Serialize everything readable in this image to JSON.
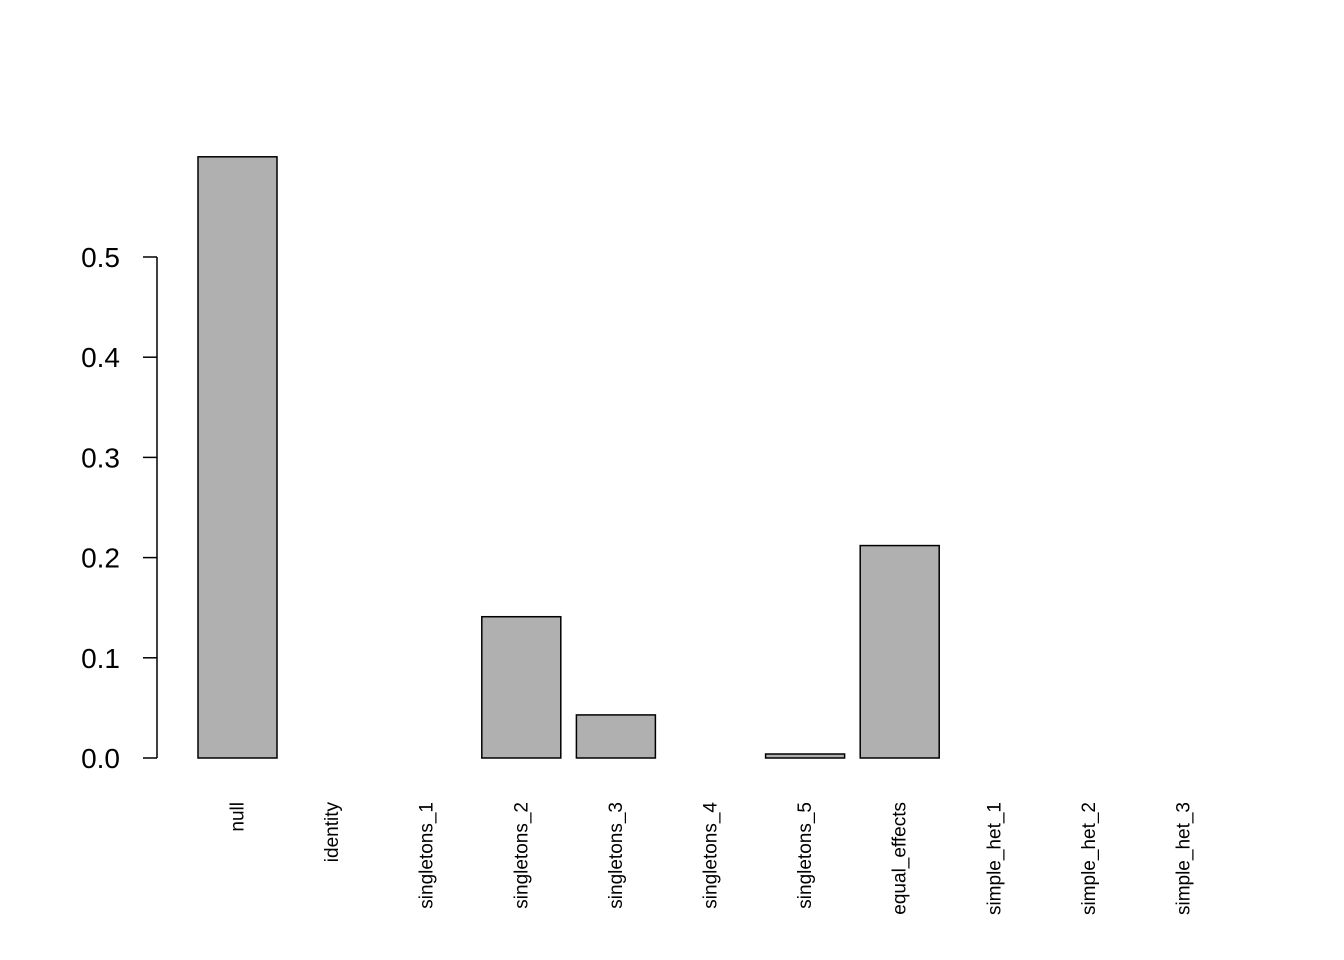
{
  "chart_data": {
    "type": "bar",
    "categories": [
      "null",
      "identity",
      "singletons_1",
      "singletons_2",
      "singletons_3",
      "singletons_4",
      "singletons_5",
      "equal_effects",
      "simple_het_1",
      "simple_het_2",
      "simple_het_3"
    ],
    "values": [
      0.6,
      0.0,
      0.0,
      0.141,
      0.043,
      0.0,
      0.004,
      0.212,
      0.0,
      0.0,
      0.0
    ],
    "title": "",
    "xlabel": "",
    "ylabel": "",
    "ylim": [
      0,
      0.6
    ],
    "yticks": [
      "0.0",
      "0.1",
      "0.2",
      "0.3",
      "0.4",
      "0.5"
    ],
    "bar_color": "#b0b0b0",
    "grid": false,
    "legend": "none"
  }
}
